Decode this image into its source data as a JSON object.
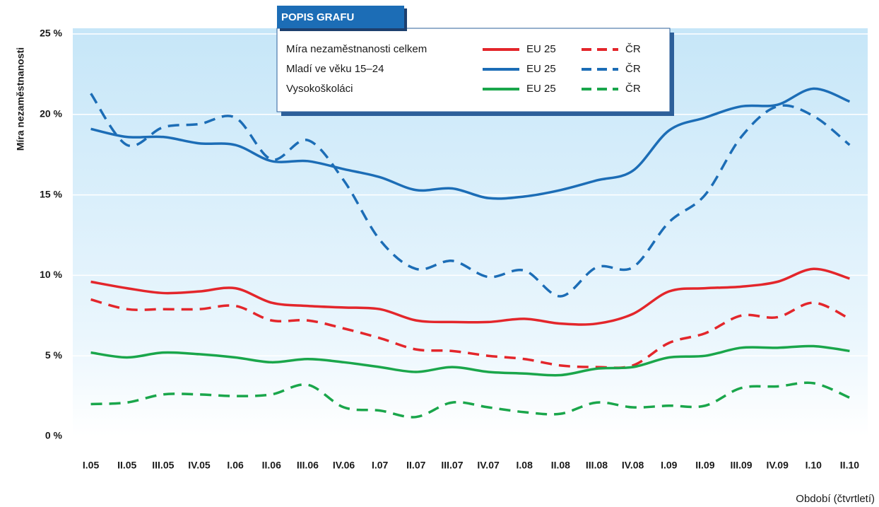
{
  "chart_data": {
    "type": "line",
    "legend_title": "POPIS GRAFU",
    "y_label": "Míra nezaměstnanosti",
    "x_label": "Období (čtvrtletí)",
    "categories": [
      "I.05",
      "II.05",
      "III.05",
      "IV.05",
      "I.06",
      "II.06",
      "III.06",
      "IV.06",
      "I.07",
      "II.07",
      "III.07",
      "IV.07",
      "I.08",
      "II.08",
      "III.08",
      "IV.08",
      "I.09",
      "II.09",
      "III.09",
      "IV.09",
      "I.10",
      "II.10"
    ],
    "ylim": [
      0,
      25
    ],
    "yticks": [
      {
        "value": 0,
        "label": "0 %"
      },
      {
        "value": 5,
        "label": "5 %"
      },
      {
        "value": 10,
        "label": "10 %"
      },
      {
        "value": 15,
        "label": "15 %"
      },
      {
        "value": 20,
        "label": "20 %"
      },
      {
        "value": 25,
        "label": "25 %"
      }
    ],
    "grid": true,
    "groups": [
      {
        "label": "Míra nezaměstnanosti celkem",
        "series": [
          {
            "name": "EU 25",
            "color": "#e3262b",
            "dashed": false,
            "values": [
              9.6,
              9.2,
              8.9,
              9.0,
              9.2,
              8.3,
              8.1,
              8.0,
              7.9,
              7.2,
              7.1,
              7.1,
              7.3,
              7.0,
              7.0,
              7.6,
              9.0,
              9.2,
              9.3,
              9.6,
              10.4,
              9.8
            ]
          },
          {
            "name": "ČR",
            "color": "#e3262b",
            "dashed": true,
            "values": [
              8.5,
              7.9,
              7.9,
              7.9,
              8.1,
              7.2,
              7.2,
              6.7,
              6.1,
              5.4,
              5.3,
              5.0,
              4.8,
              4.4,
              4.3,
              4.4,
              5.8,
              6.4,
              7.5,
              7.4,
              8.3,
              7.3
            ]
          }
        ]
      },
      {
        "label": "Mladí ve věku 15–24",
        "series": [
          {
            "name": "EU 25",
            "color": "#1c6db6",
            "dashed": false,
            "values": [
              19.1,
              18.6,
              18.6,
              18.2,
              18.1,
              17.1,
              17.1,
              16.6,
              16.1,
              15.3,
              15.4,
              14.8,
              14.9,
              15.3,
              15.9,
              16.5,
              19.0,
              19.8,
              20.5,
              20.6,
              21.6,
              20.8
            ]
          },
          {
            "name": "ČR",
            "color": "#1c6db6",
            "dashed": true,
            "values": [
              21.3,
              18.1,
              19.2,
              19.4,
              19.8,
              17.2,
              18.4,
              15.9,
              12.2,
              10.4,
              10.9,
              9.9,
              10.3,
              8.7,
              10.5,
              10.5,
              13.3,
              15.0,
              18.6,
              20.5,
              19.9,
              18.1
            ]
          }
        ]
      },
      {
        "label": "Vysokoškoláci",
        "series": [
          {
            "name": "EU 25",
            "color": "#1aa64b",
            "dashed": false,
            "values": [
              5.2,
              4.9,
              5.2,
              5.1,
              4.9,
              4.6,
              4.8,
              4.6,
              4.3,
              4.0,
              4.3,
              4.0,
              3.9,
              3.8,
              4.2,
              4.3,
              4.9,
              5.0,
              5.5,
              5.5,
              5.6,
              5.3
            ]
          },
          {
            "name": "ČR",
            "color": "#1aa64b",
            "dashed": true,
            "values": [
              2.0,
              2.1,
              2.6,
              2.6,
              2.5,
              2.6,
              3.2,
              1.8,
              1.6,
              1.2,
              2.1,
              1.8,
              1.5,
              1.4,
              2.1,
              1.8,
              1.9,
              1.9,
              3.0,
              3.1,
              3.3,
              2.4
            ]
          }
        ]
      }
    ]
  }
}
